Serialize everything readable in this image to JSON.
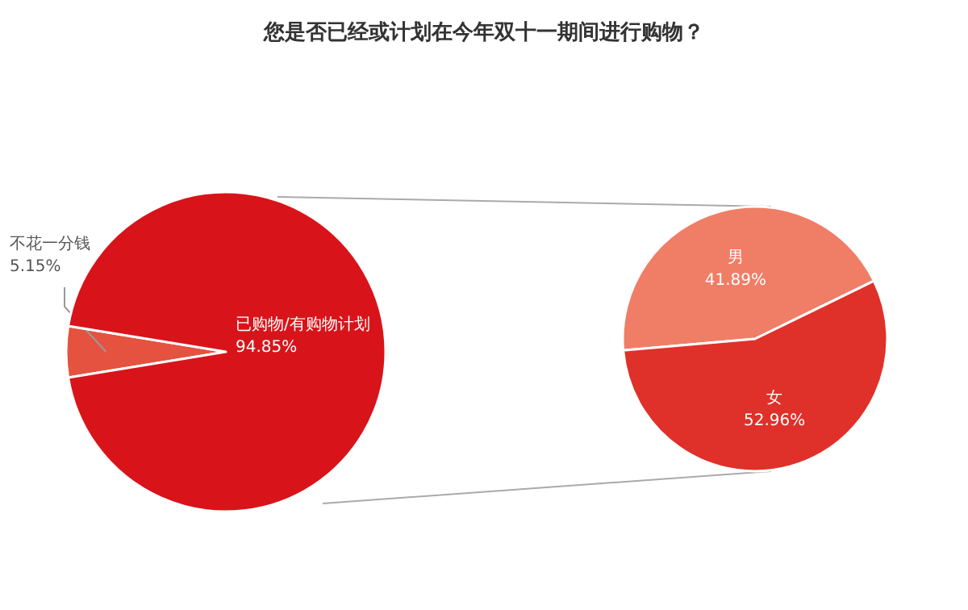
{
  "chart_data": [
    {
      "type": "pie",
      "title": "您是否已经或计划在今年双十一期间进行购物？",
      "categories": [
        "不花一分钱",
        "已购物/有购物计划"
      ],
      "values": [
        5.15,
        94.85
      ],
      "colors": [
        "#e5523f",
        "#d8141a"
      ],
      "value_labels": [
        "5.15%",
        "94.85%"
      ]
    },
    {
      "type": "pie",
      "categories": [
        "男",
        "女"
      ],
      "values": [
        41.89,
        52.96
      ],
      "colors": [
        "#f07d66",
        "#e0302a"
      ],
      "value_labels": [
        "41.89%",
        "52.96%"
      ]
    }
  ]
}
